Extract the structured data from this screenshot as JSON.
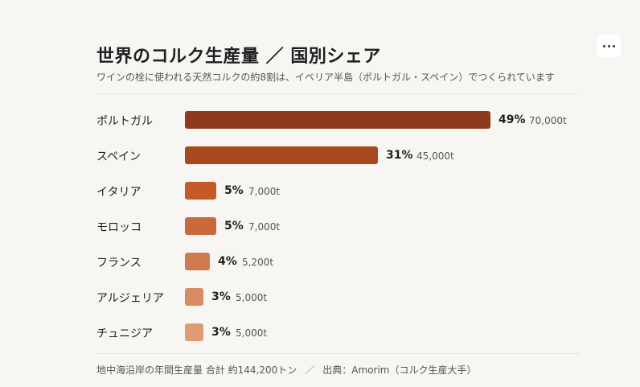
{
  "header": {
    "title": "世界のコルク生産量 ／ 国別シェア",
    "subtitle": "ワインの栓に使われる天然コルクの約8割は、イベリア半島（ポルトガル・スペイン）でつくられています"
  },
  "menu": {
    "icon": "more-horizontal-icon"
  },
  "chart_data": {
    "type": "bar",
    "orientation": "horizontal",
    "title": "世界のコルク生産量 ／ 国別シェア",
    "categories": [
      "ポルトガル",
      "スペイン",
      "イタリア",
      "モロッコ",
      "フランス",
      "アルジェリア",
      "チュニジア"
    ],
    "series": [
      {
        "values": [
          49,
          31,
          5,
          5,
          4,
          3,
          3
        ],
        "value_labels": [
          "49%",
          "31%",
          "5%",
          "5%",
          "4%",
          "3%",
          "3%"
        ]
      },
      {
        "values": [
          70000,
          45000,
          7000,
          7000,
          5200,
          5000,
          5000
        ],
        "value_labels": [
          "70,000t",
          "45,000t",
          "7,000t",
          "7,000t",
          "5,200t",
          "5,000t",
          "5,000t"
        ]
      }
    ],
    "colors": [
      "#8e3a1d",
      "#a9481f",
      "#c45a2a",
      "#c86a3c",
      "#d07a4f",
      "#d78c62",
      "#dd9c74"
    ],
    "grid": false,
    "legend": "none"
  },
  "footer": {
    "total": "地中海沿岸の年間生産量 合計 約144,200トン",
    "separator": "／",
    "source": "出典：Amorim（コルク生産大手）"
  }
}
